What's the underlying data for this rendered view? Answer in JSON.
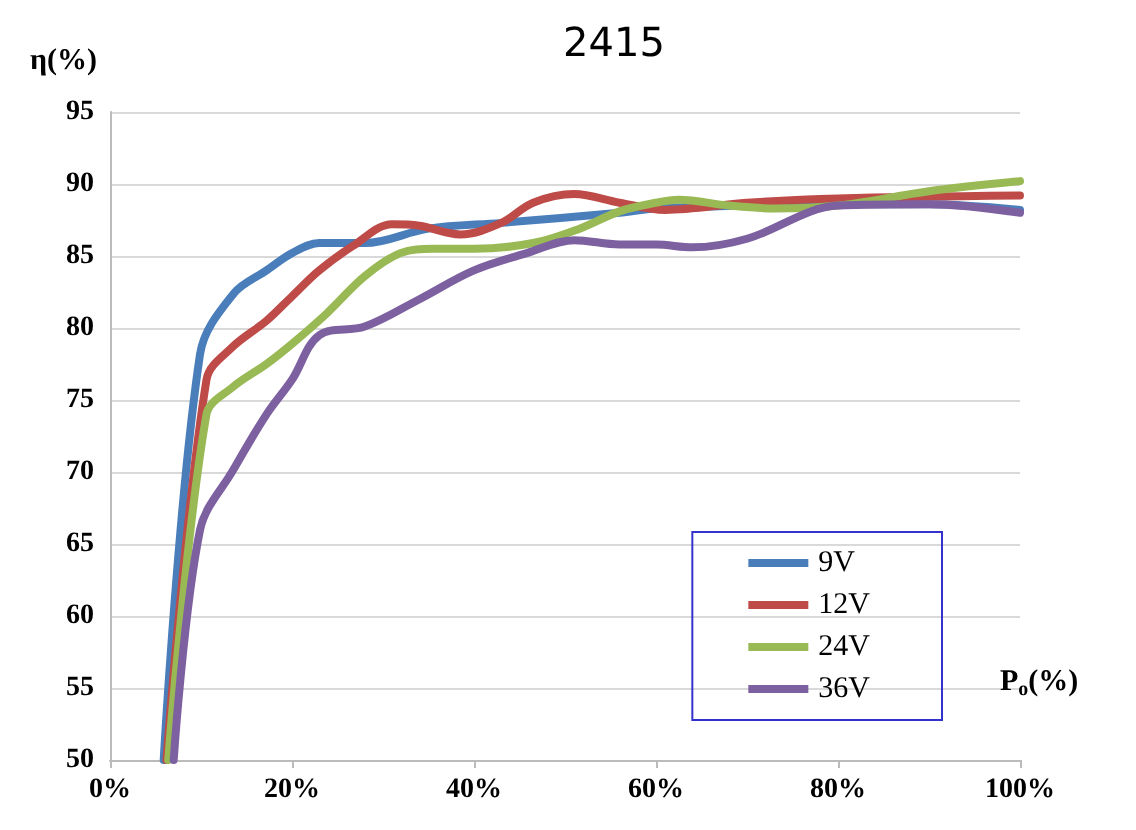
{
  "chart_data": {
    "type": "line",
    "title": "2415",
    "xlabel": "P$_{o}$(%)",
    "ylabel": "η(%)",
    "xlim": [
      0,
      100
    ],
    "xticks": [
      {
        "value": 0,
        "label": "0%"
      },
      {
        "value": 20,
        "label": "20%"
      },
      {
        "value": 40,
        "label": "40%"
      },
      {
        "value": 60,
        "label": "60%"
      },
      {
        "value": 80,
        "label": "80%"
      },
      {
        "value": 100,
        "label": "100%"
      }
    ],
    "ylim": [
      50,
      95
    ],
    "yticks": [
      50,
      55,
      60,
      65,
      70,
      75,
      80,
      85,
      90,
      95
    ],
    "grid": "y",
    "legend": "bottom right",
    "marker": "none",
    "line_style": "solid",
    "series": [
      {
        "name": "9V",
        "color": "#4a7ebb",
        "x": [
          5.9,
          9.9,
          13.6,
          17.2,
          20,
          23,
          28,
          35,
          43,
          56,
          60,
          80,
          90,
          100
        ],
        "values": [
          50,
          78.2,
          82.4,
          84,
          85.2,
          85.9,
          85.9,
          86.9,
          87.3,
          88,
          88.3,
          88.6,
          88.6,
          88.2
        ]
      },
      {
        "name": "12V",
        "color": "#be4b48",
        "x": [
          6.2,
          10.6,
          13.5,
          17.2,
          20,
          23,
          26.7,
          31,
          34,
          38.5,
          43,
          46.5,
          51,
          56,
          61,
          70,
          80,
          100
        ],
        "values": [
          50,
          76.4,
          78.7,
          80.5,
          82.2,
          84,
          85.7,
          87.2,
          87.1,
          86.5,
          87.3,
          88.7,
          89.3,
          88.7,
          88.2,
          88.7,
          89,
          89.2
        ]
      },
      {
        "name": "24V",
        "color": "#98b954",
        "x": [
          6.4,
          10.6,
          13.5,
          17.2,
          20,
          23.8,
          28,
          31.9,
          35.5,
          40,
          46.5,
          51.6,
          56,
          60,
          62.5,
          68,
          73,
          80,
          90,
          100
        ],
        "values": [
          50,
          74,
          75.9,
          77.5,
          78.9,
          81,
          83.6,
          85.2,
          85.5,
          85.5,
          85.9,
          86.9,
          88.1,
          88.7,
          88.9,
          88.5,
          88.3,
          88.5,
          89.5,
          90.2
        ]
      },
      {
        "name": "36V",
        "color": "#7d60a0",
        "x": [
          7,
          9.9,
          13.5,
          17.2,
          20,
          23,
          28,
          34,
          40,
          45.8,
          51,
          56,
          60,
          64,
          70,
          80,
          90,
          100
        ],
        "values": [
          50,
          66,
          70.1,
          74,
          76.4,
          79.5,
          80.1,
          82,
          84,
          85.2,
          86.1,
          85.8,
          85.8,
          85.6,
          86.2,
          88.5,
          88.6,
          88
        ]
      }
    ]
  }
}
